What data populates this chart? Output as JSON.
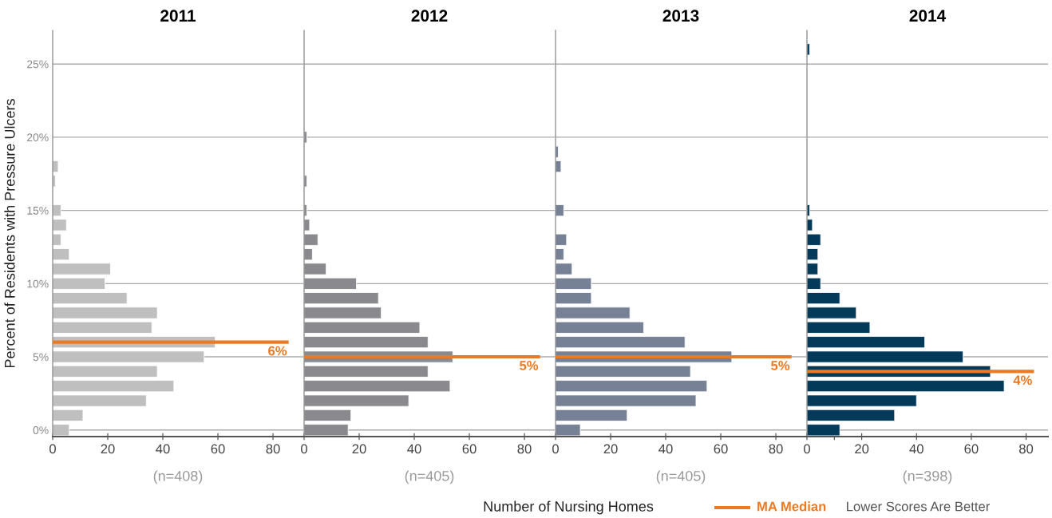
{
  "chart_data": [
    {
      "type": "bar",
      "orientation": "horizontal",
      "title": "2011",
      "ylabel": "Percent of Residents with Pressure Ulcers",
      "annotations": [
        "(n=408)"
      ],
      "x": [
        0,
        1,
        2,
        3,
        4,
        5,
        6,
        7,
        8,
        9,
        10,
        11,
        12,
        13,
        14,
        15,
        17,
        18
      ],
      "values": [
        6,
        11,
        34,
        44,
        38,
        55,
        59,
        36,
        38,
        27,
        19,
        21,
        6,
        3,
        5,
        3,
        1,
        2
      ],
      "color": "#c0bfc0",
      "xlim": [
        0,
        91
      ],
      "xticks": [
        0,
        20,
        40,
        60,
        80
      ],
      "ylim": [
        -0.45,
        27.3
      ],
      "yticks": [
        {
          "value": 0,
          "label": "0%"
        },
        {
          "value": 5,
          "label": "5%"
        },
        {
          "value": 10,
          "label": "10%"
        },
        {
          "value": 15,
          "label": "15%"
        },
        {
          "value": 20,
          "label": "20%"
        },
        {
          "value": 25,
          "label": "25%"
        }
      ],
      "grid": "y",
      "ref_lines": [
        {
          "axis": "y",
          "value": 6,
          "label": "6%",
          "color": "#ec7a23"
        }
      ]
    },
    {
      "type": "bar",
      "orientation": "horizontal",
      "title": "2012",
      "xlabel": "Number of Nursing Homes",
      "annotations": [
        "(n=405)"
      ],
      "tick_labels": "x",
      "x": [
        0,
        1,
        2,
        3,
        4,
        5,
        6,
        7,
        8,
        9,
        10,
        11,
        12,
        13,
        14,
        15,
        17,
        20
      ],
      "values": [
        16,
        17,
        38,
        53,
        45,
        54,
        45,
        42,
        28,
        27,
        19,
        8,
        3,
        5,
        2,
        1,
        1,
        1
      ],
      "color": "#8a8a8e",
      "xlim": [
        0,
        91
      ],
      "xticks": [
        0,
        20,
        40,
        60,
        80
      ],
      "ylim": [
        -0.45,
        27.3
      ],
      "yticks": [
        0,
        5,
        10,
        15,
        20,
        25
      ],
      "grid": "y",
      "ref_lines": [
        {
          "axis": "y",
          "value": 5,
          "label": "5%",
          "color": "#ec7a23"
        }
      ]
    },
    {
      "type": "bar",
      "orientation": "horizontal",
      "title": "2013",
      "annotations": [
        "(n=405)"
      ],
      "tick_labels": "x",
      "x": [
        0,
        1,
        2,
        3,
        4,
        5,
        6,
        7,
        8,
        9,
        10,
        11,
        12,
        13,
        15,
        18,
        19
      ],
      "values": [
        9,
        26,
        51,
        55,
        49,
        64,
        47,
        32,
        27,
        13,
        13,
        6,
        3,
        4,
        3,
        2,
        1
      ],
      "color": "#768196",
      "xlim": [
        0,
        91
      ],
      "xticks": [
        0,
        20,
        40,
        60,
        80
      ],
      "ylim": [
        -0.45,
        27.3
      ],
      "yticks": [
        0,
        5,
        10,
        15,
        20,
        25
      ],
      "grid": "y",
      "ref_lines": [
        {
          "axis": "y",
          "value": 5,
          "label": "5%",
          "color": "#ec7a23"
        }
      ]
    },
    {
      "type": "bar",
      "orientation": "horizontal",
      "title": "2014",
      "annotations": [
        "(n=398)",
        "MA Median",
        "Lower Scores Are Better"
      ],
      "tick_labels": "x",
      "x": [
        0,
        1,
        2,
        3,
        4,
        5,
        6,
        7,
        8,
        9,
        10,
        11,
        12,
        13,
        14,
        15,
        26
      ],
      "values": [
        12,
        32,
        40,
        72,
        67,
        57,
        43,
        23,
        18,
        12,
        5,
        4,
        4,
        5,
        2,
        1,
        1
      ],
      "color": "#033a59",
      "xlim": [
        0,
        88
      ],
      "xticks": [
        0,
        {
          "value": 10,
          "label": null
        },
        20,
        40,
        60,
        80
      ],
      "ylim": [
        -0.45,
        27.3
      ],
      "yticks": [
        0,
        5,
        10,
        15,
        20,
        25
      ],
      "grid": "y",
      "ref_lines": [
        {
          "axis": "y",
          "value": 4,
          "label": "4%",
          "color": "#ec7a23"
        }
      ]
    }
  ]
}
